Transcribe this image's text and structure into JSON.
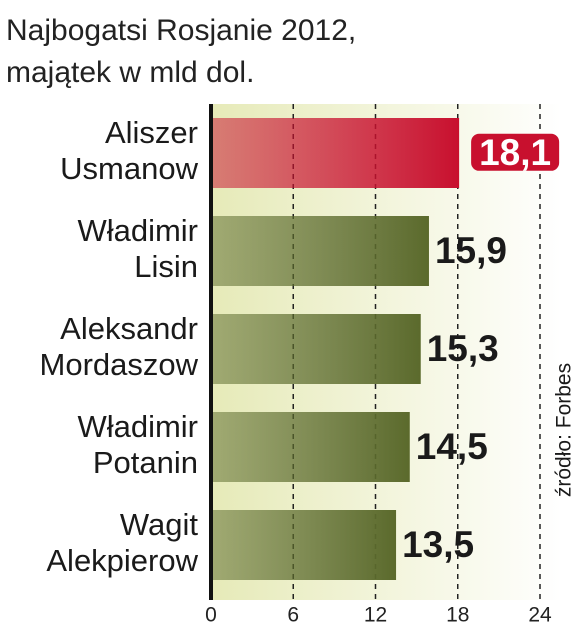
{
  "chart_data": {
    "type": "bar",
    "orientation": "horizontal",
    "title": "Najbogatsi Rosjanie 2012,",
    "subtitle": "majątek w mld dol.",
    "categories": [
      "Aliszer Usmanow",
      "Władimir Lisin",
      "Aleksandr Mordaszow",
      "Władimir Potanin",
      "Wagit Alekpierow"
    ],
    "values": [
      18.1,
      15.9,
      15.3,
      14.5,
      13.5
    ],
    "value_labels": [
      "18,1",
      "15,9",
      "15,3",
      "14,5",
      "13,5"
    ],
    "colors": [
      "#c8102e",
      "#5b6a2c",
      "#5b6a2c",
      "#5b6a2c",
      "#5b6a2c"
    ],
    "xlim": [
      0,
      24
    ],
    "xticks": [
      0,
      6,
      12,
      18,
      24
    ],
    "grid": true,
    "source": "źródło: Forbes"
  }
}
